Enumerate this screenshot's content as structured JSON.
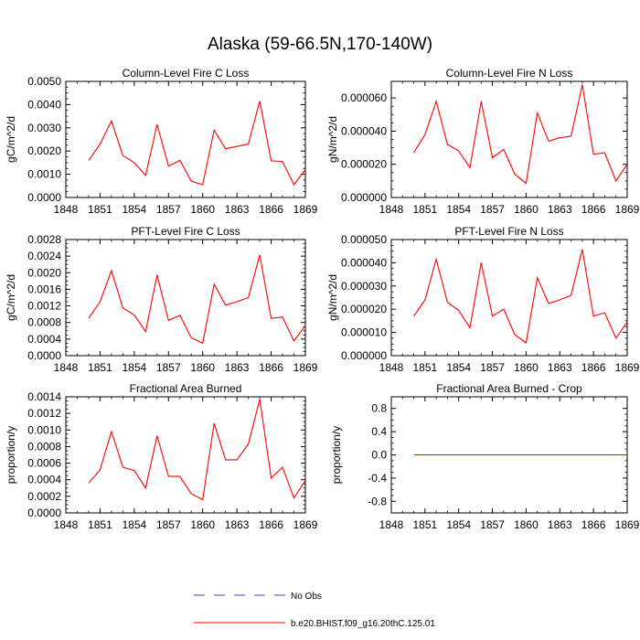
{
  "title": "Alaska (59-66.5N,170-140W)",
  "x_ticks": [
    1848,
    1851,
    1854,
    1857,
    1860,
    1863,
    1866,
    1869
  ],
  "legend": [
    {
      "label": "No Obs",
      "style": "dashed",
      "color": "#4040c0"
    },
    {
      "label": "b.e20.BHIST.f09_g16.20thC.125.01",
      "style": "solid",
      "color": "#ff0000"
    }
  ],
  "chart_data": [
    {
      "type": "line",
      "title": "Column-Level Fire C Loss",
      "ylabel": "gC/m^2/d",
      "xlim": [
        1848,
        1869
      ],
      "ylim": [
        0,
        0.005
      ],
      "yticks": [
        "0.0000",
        "0.0010",
        "0.0020",
        "0.0030",
        "0.0040",
        "0.0050"
      ],
      "ytick_values": [
        0,
        0.001,
        0.002,
        0.003,
        0.004,
        0.005
      ],
      "series": [
        {
          "color": "#ff0000",
          "x": [
            1850,
            1851,
            1852,
            1853,
            1854,
            1855,
            1856,
            1857,
            1858,
            1859,
            1860,
            1861,
            1862,
            1863,
            1864,
            1865,
            1866,
            1867,
            1868,
            1869
          ],
          "values": [
            0.0016,
            0.0023,
            0.0033,
            0.0018,
            0.0015,
            0.00095,
            0.00315,
            0.00135,
            0.0016,
            0.0007,
            0.00055,
            0.0029,
            0.0021,
            0.0022,
            0.0023,
            0.00415,
            0.00158,
            0.00155,
            0.00055,
            0.0012
          ]
        }
      ]
    },
    {
      "type": "line",
      "title": "Column-Level Fire N Loss",
      "ylabel": "gN/m^2/d",
      "xlim": [
        1848,
        1869
      ],
      "ylim": [
        0,
        7e-05
      ],
      "yticks": [
        "0.000000",
        "0.000020",
        "0.000040",
        "0.000060"
      ],
      "ytick_values": [
        0,
        2e-05,
        4e-05,
        6e-05
      ],
      "series": [
        {
          "color": "#ff0000",
          "x": [
            1850,
            1851,
            1852,
            1853,
            1854,
            1855,
            1856,
            1857,
            1858,
            1859,
            1860,
            1861,
            1862,
            1863,
            1864,
            1865,
            1866,
            1867,
            1868,
            1869
          ],
          "values": [
            2.7e-05,
            3.8e-05,
            5.8e-05,
            3.2e-05,
            2.8e-05,
            1.8e-05,
            5.8e-05,
            2.4e-05,
            2.9e-05,
            1.4e-05,
            8.5e-06,
            5.1e-05,
            3.4e-05,
            3.6e-05,
            3.7e-05,
            6.8e-05,
            2.6e-05,
            2.7e-05,
            1e-05,
            2e-05
          ]
        }
      ]
    },
    {
      "type": "line",
      "title": "PFT-Level Fire C Loss",
      "ylabel": "gC/m^2/d",
      "xlim": [
        1848,
        1869
      ],
      "ylim": [
        0,
        0.0028
      ],
      "yticks": [
        "0.0000",
        "0.0004",
        "0.0008",
        "0.0012",
        "0.0016",
        "0.0020",
        "0.0024",
        "0.0028"
      ],
      "ytick_values": [
        0,
        0.0004,
        0.0008,
        0.0012,
        0.0016,
        0.002,
        0.0024,
        0.0028
      ],
      "series": [
        {
          "color": "#ff0000",
          "x": [
            1850,
            1851,
            1852,
            1853,
            1854,
            1855,
            1856,
            1857,
            1858,
            1859,
            1860,
            1861,
            1862,
            1863,
            1864,
            1865,
            1866,
            1867,
            1868,
            1869
          ],
          "values": [
            0.0009,
            0.0013,
            0.00205,
            0.00115,
            0.00098,
            0.00058,
            0.00195,
            0.00085,
            0.00097,
            0.00043,
            0.0003,
            0.00172,
            0.00122,
            0.0013,
            0.0014,
            0.00243,
            0.0009,
            0.00093,
            0.00035,
            0.00073
          ]
        }
      ]
    },
    {
      "type": "line",
      "title": "PFT-Level Fire N Loss",
      "ylabel": "gN/m^2/d",
      "xlim": [
        1848,
        1869
      ],
      "ylim": [
        0,
        5e-05
      ],
      "yticks": [
        "0.000000",
        "0.000010",
        "0.000020",
        "0.000030",
        "0.000040",
        "0.000050"
      ],
      "ytick_values": [
        0,
        1e-05,
        2e-05,
        3e-05,
        4e-05,
        5e-05
      ],
      "series": [
        {
          "color": "#ff0000",
          "x": [
            1850,
            1851,
            1852,
            1853,
            1854,
            1855,
            1856,
            1857,
            1858,
            1859,
            1860,
            1861,
            1862,
            1863,
            1864,
            1865,
            1866,
            1867,
            1868,
            1869
          ],
          "values": [
            1.7e-05,
            2.4e-05,
            4.15e-05,
            2.3e-05,
            1.95e-05,
            1.2e-05,
            4e-05,
            1.7e-05,
            2e-05,
            9e-06,
            5.5e-06,
            3.35e-05,
            2.25e-05,
            2.4e-05,
            2.6e-05,
            4.58e-05,
            1.7e-05,
            1.85e-05,
            7.5e-06,
            1.45e-05
          ]
        }
      ]
    },
    {
      "type": "line",
      "title": "Fractional Area Burned",
      "ylabel": "proportion/y",
      "xlim": [
        1848,
        1869
      ],
      "ylim": [
        0,
        0.0014
      ],
      "yticks": [
        "0.0000",
        "0.0002",
        "0.0004",
        "0.0006",
        "0.0008",
        "0.0010",
        "0.0012",
        "0.0014"
      ],
      "ytick_values": [
        0,
        0.0002,
        0.0004,
        0.0006,
        0.0008,
        0.001,
        0.0012,
        0.0014
      ],
      "series": [
        {
          "color": "#ff0000",
          "x": [
            1850,
            1851,
            1852,
            1853,
            1854,
            1855,
            1856,
            1857,
            1858,
            1859,
            1860,
            1861,
            1862,
            1863,
            1864,
            1865,
            1866,
            1867,
            1868,
            1869
          ],
          "values": [
            0.00036,
            0.00052,
            0.00098,
            0.00055,
            0.00051,
            0.0003,
            0.00093,
            0.00044,
            0.00044,
            0.00023,
            0.00016,
            0.00108,
            0.00064,
            0.00064,
            0.00083,
            0.00137,
            0.00042,
            0.00055,
            0.00018,
            0.00039
          ]
        }
      ]
    },
    {
      "type": "line",
      "title": "Fractional Area Burned - Crop",
      "ylabel": "proportion/y",
      "xlim": [
        1848,
        1869
      ],
      "ylim": [
        -1,
        1
      ],
      "yticks": [
        "-0.8",
        "-0.4",
        "0.0",
        "0.4",
        "0.8"
      ],
      "ytick_values": [
        -0.8,
        -0.4,
        0,
        0.4,
        0.8
      ],
      "series": [
        {
          "color": "#ff0000",
          "x": [
            1850,
            1869
          ],
          "values": [
            0,
            0
          ]
        }
      ]
    }
  ]
}
